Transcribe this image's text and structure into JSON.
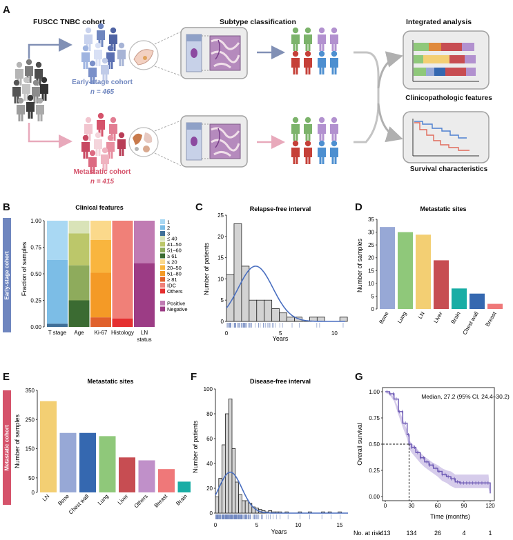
{
  "panels": {
    "A": "A",
    "B": "B",
    "C": "C",
    "D": "D",
    "E": "E",
    "F": "F",
    "G": "G"
  },
  "panelA": {
    "cohort_title": "FUSCC TNBC cohort",
    "subtype_title": "Subtype classification",
    "integrated_title": "Integrated analysis",
    "early_label": "Early-stage cohort",
    "early_n": "n = 465",
    "meta_label": "Metastatic cohort",
    "meta_n": "n = 415",
    "clinico_label": "Clinicopathologic features",
    "survival_label": "Survival characteristics"
  },
  "bands": {
    "early": "Early-stage cohort",
    "meta": "Metastatic cohort"
  },
  "colors": {
    "early": "#6f86bf",
    "meta": "#d5536b",
    "hist_fill": "#d3d3d3",
    "curve": "#4a6fc0"
  },
  "chart_data": [
    {
      "id": "B",
      "type": "bar",
      "title": "Clinical features",
      "ylabel": "Fraction of samples",
      "ylim": [
        0,
        1
      ],
      "yticks": [
        "0.00",
        "0.25",
        "0.50",
        "0.75",
        "1.00"
      ],
      "categories": [
        "T stage",
        "Age",
        "Ki-67",
        "Histology",
        "LN status"
      ],
      "stacks": [
        {
          "name": "T stage",
          "segments": [
            {
              "label": "3",
              "value": 0.03,
              "color": "#3f6f97"
            },
            {
              "label": "2",
              "value": 0.6,
              "color": "#7cbde6"
            },
            {
              "label": "1",
              "value": 0.37,
              "color": "#a9d8f3"
            }
          ]
        },
        {
          "name": "Age",
          "segments": [
            {
              "label": "≥ 61",
              "value": 0.25,
              "color": "#3b6b32"
            },
            {
              "label": "51–60",
              "value": 0.33,
              "color": "#8eab5c"
            },
            {
              "label": "41–50",
              "value": 0.3,
              "color": "#bcc76a"
            },
            {
              "label": "≤ 40",
              "value": 0.12,
              "color": "#d9e3b8"
            }
          ]
        },
        {
          "name": "Ki-67",
          "segments": [
            {
              "label": "≥ 81",
              "value": 0.09,
              "color": "#e0612b"
            },
            {
              "label": "51–80",
              "value": 0.42,
              "color": "#f49a26"
            },
            {
              "label": "20–50",
              "value": 0.31,
              "color": "#f9b53e"
            },
            {
              "label": "≤ 20",
              "value": 0.18,
              "color": "#fbd98b"
            }
          ]
        },
        {
          "name": "Histology",
          "segments": [
            {
              "label": "Others",
              "value": 0.08,
              "color": "#e53030"
            },
            {
              "label": "IDC",
              "value": 0.92,
              "color": "#f08078"
            }
          ]
        },
        {
          "name": "LN status",
          "segments": [
            {
              "label": "Negative",
              "value": 0.6,
              "color": "#9c3c85"
            },
            {
              "label": "Positive",
              "value": 0.4,
              "color": "#c07bb3"
            }
          ]
        }
      ],
      "legend": [
        {
          "label": "1",
          "color": "#a9d8f3"
        },
        {
          "label": "2",
          "color": "#7cbde6"
        },
        {
          "label": "3",
          "color": "#3f6f97"
        },
        {
          "label": "≤ 40",
          "color": "#d9e3b8"
        },
        {
          "label": "41–50",
          "color": "#bcc76a"
        },
        {
          "label": "51–60",
          "color": "#8eab5c"
        },
        {
          "label": "≥ 61",
          "color": "#3b6b32"
        },
        {
          "label": "≤ 20",
          "color": "#fbd98b"
        },
        {
          "label": "20–50",
          "color": "#f9b53e"
        },
        {
          "label": "51–80",
          "color": "#f49a26"
        },
        {
          "label": "≥ 81",
          "color": "#e0612b"
        },
        {
          "label": "IDC",
          "color": "#f08078"
        },
        {
          "label": "Others",
          "color": "#e53030"
        },
        {
          "label": "Positive",
          "color": "#c07bb3"
        },
        {
          "label": "Negative",
          "color": "#9c3c85"
        }
      ]
    },
    {
      "id": "C",
      "type": "bar",
      "title": "Relapse-free interval",
      "xlabel": "Years",
      "ylabel": "Number of patients",
      "xlim": [
        0,
        11
      ],
      "ylim": [
        0,
        25
      ],
      "xticks": [
        0,
        5,
        10
      ],
      "yticks": [
        0,
        5,
        10,
        15,
        20,
        25
      ],
      "bin_width": 0.7,
      "bins_start": 0,
      "values": [
        11,
        23,
        13,
        5,
        5,
        5,
        3,
        2,
        1,
        1,
        0,
        1,
        1,
        0,
        0,
        1
      ],
      "curve": {
        "mean": 2.7,
        "sd": 1.6,
        "scale": 13
      }
    },
    {
      "id": "D",
      "type": "bar",
      "title": "Metastatic sites",
      "ylabel": "Number of samples",
      "ylim": [
        0,
        35
      ],
      "yticks": [
        0,
        5,
        10,
        15,
        20,
        25,
        30,
        35
      ],
      "categories": [
        "Bone",
        "Lung",
        "LN",
        "Liver",
        "Brain",
        "Chest wall",
        "Breast"
      ],
      "values": [
        32,
        30,
        29,
        19,
        8,
        6,
        2
      ],
      "colors": [
        "#97a8d6",
        "#8fc87a",
        "#f3cf73",
        "#c74d52",
        "#19ada5",
        "#3568b0",
        "#ef7879"
      ]
    },
    {
      "id": "E",
      "type": "bar",
      "title": "Metastatic sites",
      "ylabel": "Number of samples",
      "ylim": [
        0,
        350
      ],
      "yticks": [
        0,
        50,
        150,
        250,
        350
      ],
      "categories": [
        "LN",
        "Bone",
        "Chest wall",
        "Lung",
        "Liver",
        "Others",
        "Breast",
        "Brain"
      ],
      "values": [
        313,
        204,
        204,
        193,
        120,
        110,
        80,
        37
      ],
      "colors": [
        "#f3cf73",
        "#97a8d6",
        "#3568b0",
        "#8fc87a",
        "#c74d52",
        "#c090c9",
        "#ef7879",
        "#19ada5"
      ]
    },
    {
      "id": "F",
      "type": "bar",
      "title": "Disease-free interval",
      "xlabel": "Years",
      "ylabel": "Number of patients",
      "xlim": [
        0,
        16
      ],
      "ylim": [
        0,
        100
      ],
      "xticks": [
        0,
        5,
        10,
        15
      ],
      "yticks": [
        0,
        20,
        40,
        60,
        80,
        100
      ],
      "bin_width": 0.4,
      "bins_start": 0,
      "values": [
        13,
        28,
        55,
        80,
        92,
        52,
        25,
        15,
        10,
        10,
        8,
        5,
        4,
        3,
        2,
        1,
        2,
        1,
        1,
        1,
        0,
        1,
        0,
        0,
        0,
        1,
        0,
        0,
        1,
        0,
        0,
        0,
        1,
        0,
        1,
        0,
        0,
        1,
        0,
        0,
        0
      ],
      "curve": {
        "mean": 1.8,
        "sd": 1.4,
        "scale": 33
      }
    },
    {
      "id": "G",
      "type": "line",
      "title": "",
      "xlabel": "Time (months)",
      "ylabel": "Overall survival",
      "xlim": [
        0,
        120
      ],
      "ylim": [
        0,
        1
      ],
      "xticks": [
        0,
        30,
        60,
        90,
        120
      ],
      "yticks": [
        "0.00",
        "0.25",
        "0.50",
        "0.75",
        "1.00"
      ],
      "annotation": "Median, 27.2 (95% CI, 24.4–30.2)",
      "median": 27.2,
      "x": [
        0,
        5,
        10,
        15,
        20,
        25,
        27.2,
        30,
        35,
        40,
        45,
        50,
        55,
        60,
        65,
        70,
        75,
        80,
        85,
        90,
        95,
        100,
        105,
        110,
        115,
        118,
        120
      ],
      "y": [
        1.0,
        0.98,
        0.93,
        0.81,
        0.7,
        0.59,
        0.5,
        0.47,
        0.42,
        0.37,
        0.33,
        0.3,
        0.27,
        0.24,
        0.21,
        0.19,
        0.17,
        0.14,
        0.13,
        0.13,
        0.13,
        0.13,
        0.13,
        0.13,
        0.13,
        0.13,
        0.03
      ],
      "ci_low": [
        1.0,
        0.97,
        0.91,
        0.78,
        0.66,
        0.55,
        0.46,
        0.42,
        0.37,
        0.32,
        0.28,
        0.25,
        0.22,
        0.19,
        0.15,
        0.13,
        0.1,
        0.08,
        0.08,
        0.08,
        0.08,
        0.08,
        0.08,
        0.08,
        0.08,
        0.08,
        0.03
      ],
      "ci_high": [
        1.0,
        0.99,
        0.95,
        0.84,
        0.74,
        0.63,
        0.54,
        0.51,
        0.47,
        0.42,
        0.38,
        0.35,
        0.32,
        0.3,
        0.27,
        0.25,
        0.24,
        0.21,
        0.21,
        0.21,
        0.21,
        0.21,
        0.21,
        0.21,
        0.21,
        0.21,
        0.03
      ],
      "risk_label": "No. at risk",
      "risk_values": [
        "413",
        "134",
        "26",
        "4",
        "1"
      ]
    }
  ]
}
